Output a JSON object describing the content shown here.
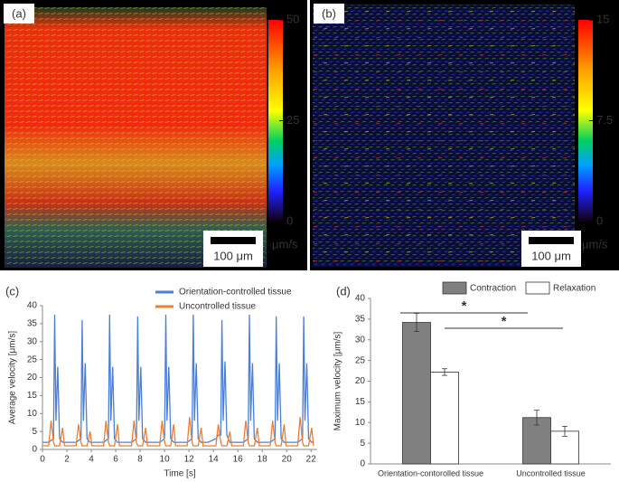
{
  "image_panels": [
    {
      "label": "(a)",
      "colorbar_lim": [
        0,
        50
      ],
      "colorbar_ticks": [
        0,
        25,
        50
      ],
      "unit": "μm/s",
      "scale_bar": "100 μm"
    },
    {
      "label": "(b)",
      "colorbar_lim": [
        0,
        15
      ],
      "colorbar_ticks": [
        0,
        7.5,
        15
      ],
      "unit": "μm/s",
      "scale_bar": "100 μm"
    }
  ],
  "chart_data": [
    {
      "type": "line",
      "panel_label": "(c)",
      "x_label": "Time [s]",
      "y_label": "Average velocity [μm/s]",
      "xlim": [
        0,
        22.5
      ],
      "xticks": [
        0,
        2,
        4,
        6,
        8,
        10,
        12,
        14,
        16,
        18,
        20,
        22
      ],
      "ylim": [
        0,
        40
      ],
      "yticks": [
        0,
        5,
        10,
        15,
        20,
        25,
        30,
        35,
        40
      ],
      "grid": false,
      "x": [
        0,
        0.5,
        0.7,
        0.9,
        1.0,
        1.1,
        1.25,
        1.4,
        1.65,
        1.8,
        2.2,
        2.75,
        2.95,
        3.15,
        3.25,
        3.35,
        3.5,
        3.65,
        3.9,
        4.05,
        4.45,
        5.0,
        5.2,
        5.4,
        5.5,
        5.6,
        5.75,
        5.9,
        6.15,
        6.3,
        6.7,
        7.3,
        7.5,
        7.7,
        7.8,
        7.9,
        8.05,
        8.2,
        8.45,
        8.6,
        9.0,
        9.6,
        9.8,
        10.0,
        10.1,
        10.2,
        10.35,
        10.5,
        10.75,
        10.9,
        11.3,
        11.85,
        12.05,
        12.25,
        12.35,
        12.45,
        12.6,
        12.75,
        13.0,
        13.15,
        13.55,
        14.2,
        14.4,
        14.6,
        14.7,
        14.8,
        14.95,
        15.1,
        15.35,
        15.5,
        15.9,
        16.45,
        16.65,
        16.85,
        16.95,
        17.05,
        17.2,
        17.35,
        17.6,
        17.75,
        18.15,
        18.65,
        18.85,
        19.05,
        19.15,
        19.25,
        19.4,
        19.55,
        19.8,
        19.95,
        20.35,
        20.9,
        21.1,
        21.3,
        21.4,
        21.5,
        21.65,
        21.8,
        22.05,
        22.2
      ],
      "series": [
        {
          "name": "Orientation-controlled tissue",
          "color": "#4a7fd4",
          "values": [
            2,
            2,
            2.5,
            3,
            37.5,
            8,
            23,
            3,
            2,
            2,
            2,
            2,
            2.5,
            3,
            36,
            8,
            24,
            3,
            2,
            2,
            2,
            2,
            2.5,
            3,
            37.5,
            8,
            23,
            3,
            2,
            2,
            2,
            2,
            2.5,
            3,
            37,
            8,
            23,
            3,
            2,
            2,
            2,
            2,
            2.5,
            3,
            37.5,
            8,
            23,
            3,
            2,
            2,
            2,
            2,
            2.5,
            3,
            37.5,
            8,
            24,
            3,
            2,
            2,
            2,
            3,
            4,
            4,
            36,
            8,
            24.5,
            4,
            2,
            2,
            2,
            2,
            2.5,
            3,
            37.5,
            8,
            24,
            3,
            2,
            2,
            2,
            2,
            2.5,
            3,
            37,
            8,
            24,
            3,
            2,
            2,
            2,
            2,
            2.5,
            3,
            37,
            8,
            24,
            3,
            2,
            2
          ]
        },
        {
          "name": "Uncontrolled tissue",
          "color": "#ed7d31",
          "values": [
            1,
            1,
            8,
            2,
            1,
            1,
            1,
            1,
            6,
            1,
            1,
            1,
            7,
            2,
            1,
            1,
            1,
            1,
            5,
            1,
            1,
            1,
            8,
            2,
            1,
            1,
            1,
            1,
            7,
            1,
            1,
            1,
            8,
            2,
            1,
            1,
            1,
            1,
            6,
            1,
            1,
            1,
            8,
            2,
            1,
            1,
            1,
            1,
            7,
            1,
            1,
            1,
            9,
            2,
            1,
            1,
            1,
            1,
            6,
            1,
            1,
            1,
            7,
            2,
            1,
            1,
            1,
            1,
            5,
            1,
            1,
            1,
            8,
            2,
            1,
            1,
            1,
            1,
            6,
            1,
            1,
            1,
            8,
            2,
            1,
            1,
            1,
            1,
            7,
            1,
            1,
            1,
            9,
            2,
            1,
            1,
            1,
            1,
            6,
            1
          ]
        }
      ]
    },
    {
      "type": "bar",
      "panel_label": "(d)",
      "y_label": "Maximum velocity [μm/s]",
      "categories": [
        "Orientation-contorolled tissue",
        "Uncontrolled tissue"
      ],
      "ylim": [
        0,
        40
      ],
      "yticks": [
        0,
        5,
        10,
        15,
        20,
        25,
        30,
        35,
        40
      ],
      "series": [
        {
          "name": "Contraction",
          "color": "#808080",
          "values": [
            34.2,
            11.2
          ],
          "errors": [
            2.2,
            1.8
          ]
        },
        {
          "name": "Relaxation",
          "color": "#ffffff",
          "values": [
            22.2,
            7.9
          ],
          "errors": [
            0.8,
            1.2
          ]
        }
      ],
      "annotations": [
        "*",
        "*"
      ]
    }
  ]
}
